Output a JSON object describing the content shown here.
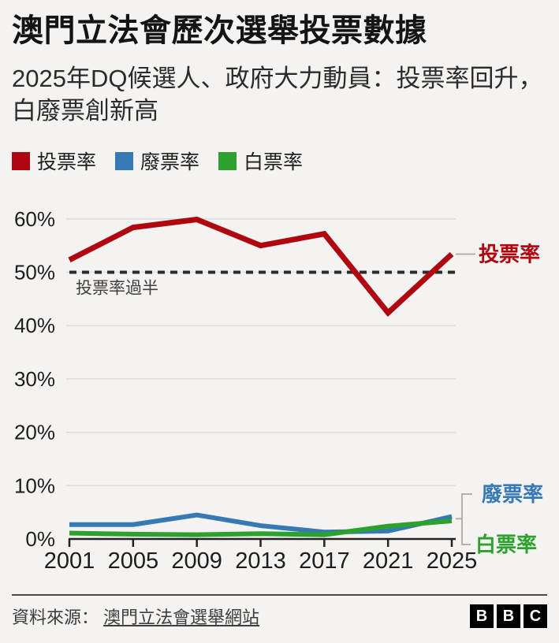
{
  "header": {
    "title": "澳門立法會歷次選舉投票數據",
    "subtitle": "2025年DQ候選人、政府大力動員：投票率回升，白廢票創新高"
  },
  "chart_data": {
    "type": "line",
    "x": [
      2001,
      2005,
      2009,
      2013,
      2017,
      2021,
      2025
    ],
    "x_tick_labels": [
      "2001",
      "2005",
      "2009",
      "2013",
      "2017",
      "2021",
      "2025"
    ],
    "series": [
      {
        "name": "投票率",
        "color": "#b00610",
        "values": [
          52.3,
          58.4,
          59.9,
          55.0,
          57.2,
          42.4,
          53.4
        ]
      },
      {
        "name": "廢票率",
        "color": "#3679b5",
        "values": [
          2.7,
          2.7,
          4.5,
          2.5,
          1.3,
          1.5,
          4.2
        ]
      },
      {
        "name": "白票率",
        "color": "#2da12d",
        "values": [
          1.1,
          0.9,
          0.8,
          1.0,
          0.8,
          2.4,
          3.4
        ]
      }
    ],
    "ylim": [
      0,
      60
    ],
    "y_tick_step": 10,
    "y_tick_suffix": "%",
    "grid": "horizontal",
    "legend_position": "top",
    "end_labels_position": "right",
    "reference_line": {
      "value": 50,
      "label": "投票率過半",
      "style": "dashed",
      "color": "#2b2b2b"
    }
  },
  "colors": {
    "background": "#f4f3f1",
    "grid": "#dddddb",
    "axis": "#222222",
    "tick_text": "#1d1d1d",
    "connector": "#b3b1ae"
  },
  "footer": {
    "source_label": "資料來源：",
    "source_link": "澳門立法會選舉網站",
    "logo_letters": [
      "B",
      "B",
      "C"
    ]
  }
}
